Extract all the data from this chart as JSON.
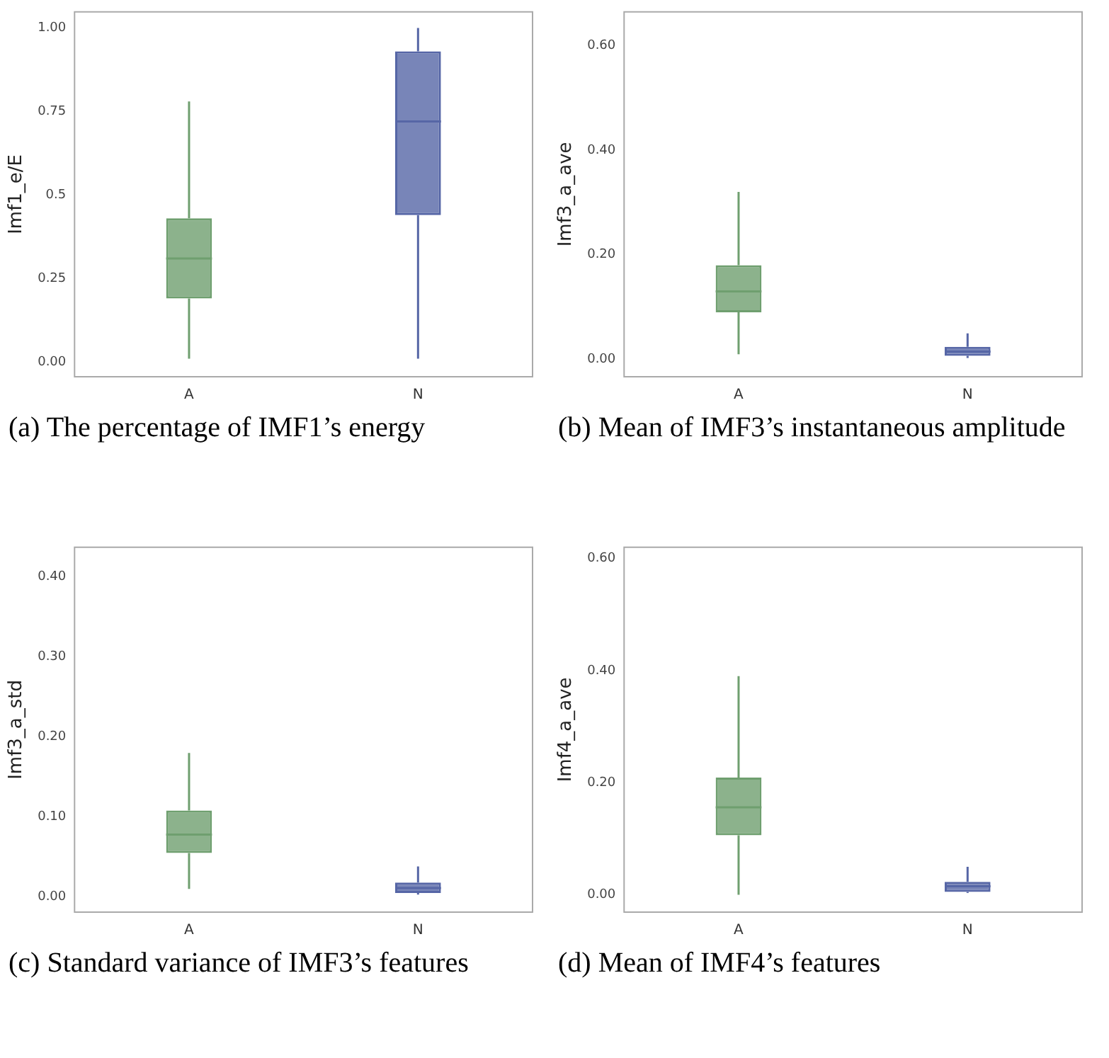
{
  "chart_data": [
    {
      "type": "box",
      "title": "(a) The percentage of IMF1’s energy",
      "ylabel": "Imf1_e/E",
      "categories": [
        "A",
        "N"
      ],
      "colors": [
        "#6f9f6f",
        "#5666a6"
      ],
      "ylim": [
        -0.044,
        1.048
      ],
      "yticks": [
        {
          "value": 0,
          "label": "0.00"
        },
        0.25,
        {
          "value": 0.5,
          "label": "0.5"
        },
        0.75,
        {
          "value": 1,
          "label": "1.00"
        }
      ],
      "boxes": [
        {
          "low": 0.01,
          "q1": 0.19,
          "median": 0.31,
          "q3": 0.43,
          "high": 0.78
        },
        {
          "low": 0.01,
          "q1": 0.44,
          "median": 0.72,
          "q3": 0.93,
          "high": 1.0
        }
      ]
    },
    {
      "type": "box",
      "title": "(b) Mean of IMF3’s instantaneous amplitude",
      "ylabel": "Imf3_a_ave",
      "categories": [
        "A",
        "N"
      ],
      "colors": [
        "#6f9f6f",
        "#5666a6"
      ],
      "ylim": [
        -0.033,
        0.664
      ],
      "yticks": [
        {
          "value": 0,
          "label": "0.00"
        },
        {
          "value": 0.2,
          "label": "0.20"
        },
        {
          "value": 0.4,
          "label": "0.40"
        },
        {
          "value": 0.6,
          "label": "0.60"
        }
      ],
      "boxes": [
        {
          "low": 0.01,
          "q1": 0.09,
          "median": 0.13,
          "q3": 0.18,
          "high": 0.32
        },
        {
          "low": 0.003,
          "q1": 0.007,
          "median": 0.015,
          "q3": 0.024,
          "high": 0.05
        }
      ]
    },
    {
      "type": "box",
      "title": "(c) Standard variance of IMF3’s features",
      "ylabel": "Imf3_a_std",
      "categories": [
        "A",
        "N"
      ],
      "colors": [
        "#6f9f6f",
        "#5666a6"
      ],
      "ylim": [
        -0.019,
        0.437
      ],
      "yticks": [
        {
          "value": 0,
          "label": "0.00"
        },
        {
          "value": 0.1,
          "label": "0.10"
        },
        {
          "value": 0.2,
          "label": "0.20"
        },
        {
          "value": 0.3,
          "label": "0.30"
        },
        {
          "value": 0.4,
          "label": "0.40"
        }
      ],
      "boxes": [
        {
          "low": 0.01,
          "q1": 0.055,
          "median": 0.078,
          "q3": 0.108,
          "high": 0.18
        },
        {
          "low": 0.003,
          "q1": 0.005,
          "median": 0.011,
          "q3": 0.018,
          "high": 0.038
        }
      ]
    },
    {
      "type": "box",
      "title": "(d) Mean of IMF4’s features",
      "ylabel": "Imf4_a_ave",
      "categories": [
        "A",
        "N"
      ],
      "colors": [
        "#6f9f6f",
        "#5666a6"
      ],
      "ylim": [
        -0.031,
        0.62
      ],
      "yticks": [
        {
          "value": 0,
          "label": "0.00"
        },
        {
          "value": 0.2,
          "label": "0.20"
        },
        {
          "value": 0.4,
          "label": "0.40"
        },
        {
          "value": 0.6,
          "label": "0.60"
        }
      ],
      "boxes": [
        {
          "low": 0.0,
          "q1": 0.106,
          "median": 0.156,
          "q3": 0.209,
          "high": 0.39
        },
        {
          "low": 0.003,
          "q1": 0.005,
          "median": 0.015,
          "q3": 0.023,
          "high": 0.05
        }
      ]
    }
  ]
}
